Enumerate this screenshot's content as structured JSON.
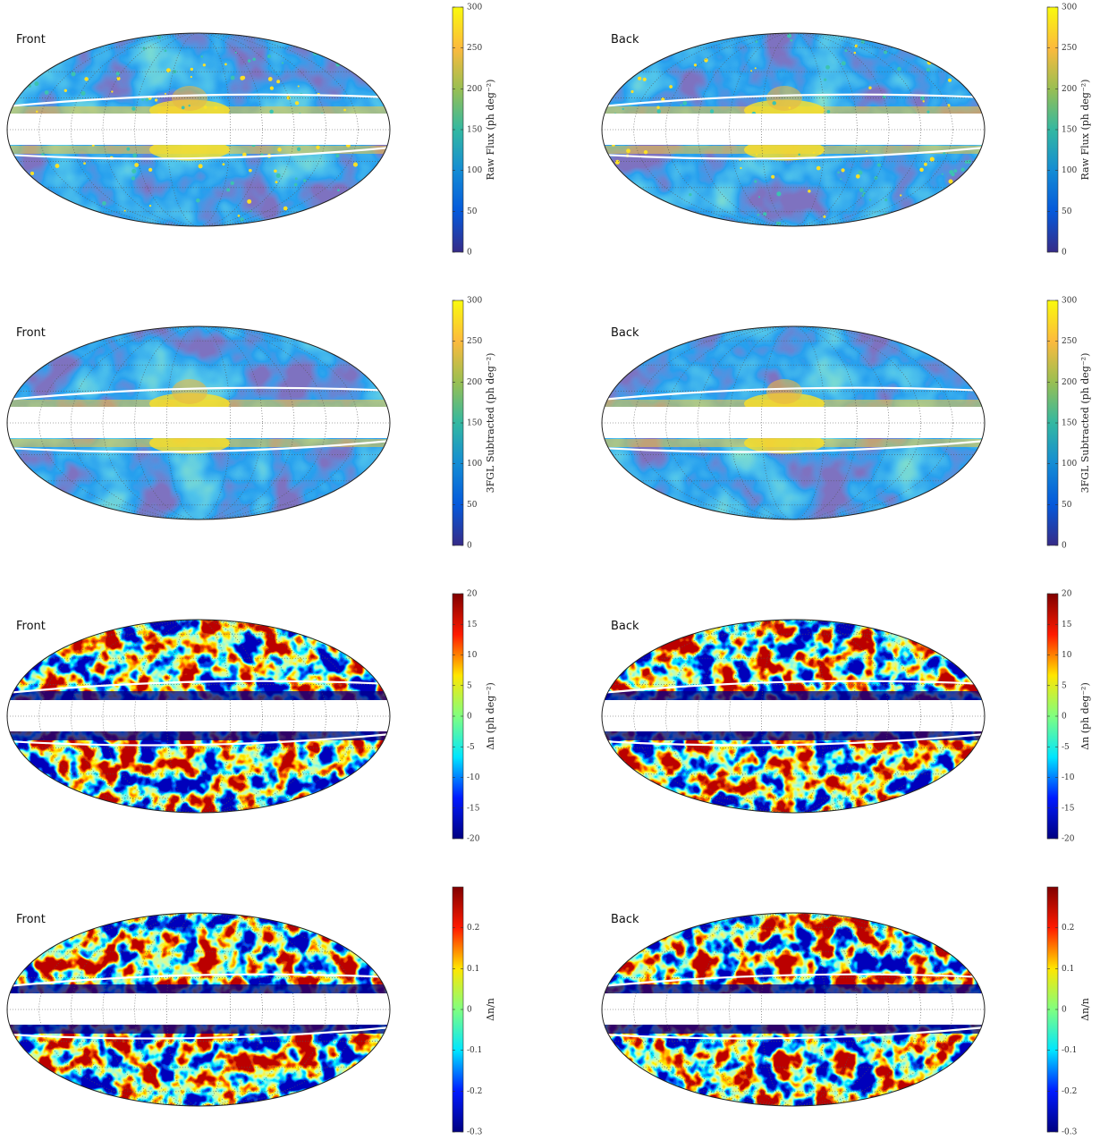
{
  "chart_data": [
    {
      "type": "mollweide",
      "title": "Front",
      "colorbar_label": "Raw Flux (ph deg⁻²)",
      "colormap": "parula",
      "point_sources": true,
      "ylim": [
        0,
        300
      ],
      "yticks": [
        0,
        50,
        100,
        150,
        200,
        250,
        300
      ]
    },
    {
      "type": "mollweide",
      "title": "Back",
      "colorbar_label": "Raw Flux (ph deg⁻²)",
      "colormap": "parula",
      "point_sources": true,
      "ylim": [
        0,
        300
      ],
      "yticks": [
        0,
        50,
        100,
        150,
        200,
        250,
        300
      ]
    },
    {
      "type": "mollweide",
      "title": "Front",
      "colorbar_label": "3FGL Subtracted (ph deg⁻²)",
      "colormap": "parula",
      "point_sources": false,
      "ylim": [
        0,
        300
      ],
      "yticks": [
        0,
        50,
        100,
        150,
        200,
        250,
        300
      ]
    },
    {
      "type": "mollweide",
      "title": "Back",
      "colorbar_label": "3FGL Subtracted (ph deg⁻²)",
      "colormap": "parula",
      "point_sources": false,
      "ylim": [
        0,
        300
      ],
      "yticks": [
        0,
        50,
        100,
        150,
        200,
        250,
        300
      ]
    },
    {
      "type": "mollweide",
      "title": "Front",
      "colorbar_label": "Δn (ph deg⁻²)",
      "colormap": "jet",
      "point_sources": false,
      "ylim": [
        -20,
        20
      ],
      "yticks": [
        -20,
        -15,
        -10,
        -5,
        0,
        5,
        10,
        15,
        20
      ]
    },
    {
      "type": "mollweide",
      "title": "Back",
      "colorbar_label": "Δn (ph deg⁻²)",
      "colormap": "jet",
      "point_sources": false,
      "ylim": [
        -20,
        20
      ],
      "yticks": [
        -20,
        -15,
        -10,
        -5,
        0,
        5,
        10,
        15,
        20
      ]
    },
    {
      "type": "mollweide",
      "title": "Front",
      "colorbar_label": "Δn/n",
      "colormap": "jet",
      "point_sources": false,
      "ylim": [
        -0.3,
        0.3
      ],
      "yticks": [
        -0.3,
        -0.2,
        -0.1,
        0,
        0.1,
        0.2
      ]
    },
    {
      "type": "mollweide",
      "title": "Back",
      "colorbar_label": "Δn/n",
      "colormap": "jet",
      "point_sources": false,
      "ylim": [
        -0.3,
        0.3
      ],
      "yticks": [
        -0.3,
        -0.2,
        -0.1,
        0,
        0.1,
        0.2
      ]
    }
  ]
}
